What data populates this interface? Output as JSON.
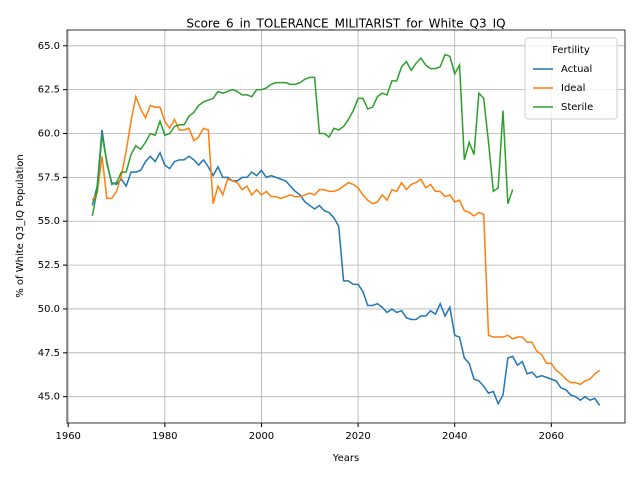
{
  "chart_data": {
    "type": "line",
    "title": "Score_6_in_TOLERANCE_MILITARIST_for_White_Q3_IQ",
    "xlabel": "Years",
    "ylabel": "% of White Q3_IQ Population",
    "legend_title": "Fertility",
    "legend": "upper right",
    "grid": true,
    "x": [
      1965,
      1966,
      1967,
      1968,
      1969,
      1970,
      1971,
      1972,
      1973,
      1974,
      1975,
      1976,
      1977,
      1978,
      1979,
      1980,
      1981,
      1982,
      1983,
      1984,
      1985,
      1986,
      1987,
      1988,
      1989,
      1990,
      1991,
      1992,
      1993,
      1994,
      1995,
      1996,
      1997,
      1998,
      1999,
      2000,
      2001,
      2002,
      2003,
      2004,
      2005,
      2006,
      2007,
      2008,
      2009,
      2010,
      2011,
      2012,
      2013,
      2014,
      2015,
      2016,
      2017,
      2018,
      2019,
      2020,
      2021,
      2022,
      2023,
      2024,
      2025,
      2026,
      2027,
      2028,
      2029,
      2030,
      2031,
      2032,
      2033,
      2034,
      2035,
      2036,
      2037,
      2038,
      2039,
      2040,
      2041,
      2042,
      2043,
      2044,
      2045,
      2046,
      2047,
      2048,
      2049,
      2050,
      2051,
      2052,
      2053,
      2054,
      2055,
      2056,
      2057,
      2058,
      2059,
      2060,
      2061,
      2062,
      2063,
      2064,
      2065,
      2066,
      2067,
      2068,
      2069,
      2070
    ],
    "series": [
      {
        "name": "Actual",
        "color": "#1f77b4",
        "values": [
          55.9,
          57.0,
          60.2,
          58.3,
          57.2,
          57.1,
          57.4,
          57.0,
          57.8,
          57.8,
          57.9,
          58.4,
          58.7,
          58.4,
          58.9,
          58.2,
          58.0,
          58.4,
          58.5,
          58.5,
          58.7,
          58.5,
          58.2,
          58.5,
          58.1,
          57.6,
          58.1,
          57.5,
          57.5,
          57.3,
          57.3,
          57.5,
          57.5,
          57.8,
          57.6,
          57.9,
          57.5,
          57.6,
          57.5,
          57.4,
          57.3,
          57.0,
          56.7,
          56.5,
          56.1,
          55.9,
          55.7,
          55.9,
          55.6,
          55.5,
          55.2,
          54.7,
          51.6,
          51.6,
          51.4,
          51.4,
          51.0,
          50.2,
          50.2,
          50.3,
          50.1,
          49.8,
          50.0,
          49.8,
          49.9,
          49.5,
          49.4,
          49.4,
          49.6,
          49.6,
          49.9,
          49.7,
          50.3,
          49.6,
          50.1,
          48.5,
          48.4,
          47.2,
          46.9,
          46.0,
          45.9,
          45.6,
          45.2,
          45.3,
          44.6,
          45.1,
          47.2,
          47.3,
          46.8,
          47.0,
          46.3,
          46.4,
          46.1,
          46.2,
          46.1,
          46.0,
          45.9,
          45.5,
          45.4,
          45.1,
          45.0,
          44.8,
          45.0,
          44.8,
          44.9,
          44.5
        ]
      },
      {
        "name": "Ideal",
        "color": "#ff7f0e",
        "values": [
          56.2,
          56.6,
          58.7,
          56.3,
          56.3,
          56.7,
          57.6,
          59.0,
          60.7,
          62.1,
          61.4,
          60.9,
          61.6,
          61.5,
          61.5,
          60.7,
          60.3,
          60.8,
          60.2,
          60.2,
          60.3,
          59.6,
          59.8,
          60.3,
          60.2,
          56.0,
          57.0,
          56.5,
          57.4,
          57.3,
          57.2,
          56.8,
          57.0,
          56.5,
          56.8,
          56.5,
          56.7,
          56.4,
          56.4,
          56.3,
          56.4,
          56.5,
          56.4,
          56.4,
          56.5,
          56.6,
          56.5,
          56.8,
          56.8,
          56.7,
          56.7,
          56.8,
          57.0,
          57.2,
          57.1,
          56.9,
          56.5,
          56.2,
          56.0,
          56.1,
          56.5,
          56.2,
          56.8,
          56.7,
          57.2,
          56.8,
          57.1,
          57.2,
          57.4,
          56.9,
          57.1,
          56.7,
          56.7,
          56.4,
          56.5,
          56.1,
          56.2,
          55.6,
          55.5,
          55.3,
          55.5,
          55.4,
          48.5,
          48.4,
          48.4,
          48.4,
          48.5,
          48.3,
          48.4,
          48.4,
          48.1,
          48.1,
          47.6,
          47.4,
          46.9,
          46.9,
          46.5,
          46.3,
          46.0,
          45.8,
          45.8,
          45.7,
          45.9,
          46.0,
          46.3,
          46.5
        ]
      },
      {
        "name": "Sterile",
        "color": "#2ca02c",
        "values": [
          55.3,
          56.8,
          59.9,
          58.4,
          57.1,
          57.2,
          57.8,
          57.8,
          58.8,
          59.3,
          59.1,
          59.5,
          60.0,
          59.9,
          60.7,
          59.9,
          60.0,
          60.4,
          60.5,
          60.5,
          61.0,
          61.2,
          61.6,
          61.8,
          61.9,
          62.0,
          62.4,
          62.3,
          62.4,
          62.5,
          62.4,
          62.2,
          62.2,
          62.1,
          62.5,
          62.5,
          62.6,
          62.8,
          62.9,
          62.9,
          62.9,
          62.8,
          62.8,
          62.9,
          63.1,
          63.2,
          63.2,
          60.0,
          60.0,
          59.8,
          60.3,
          60.2,
          60.4,
          60.8,
          61.3,
          62.0,
          62.0,
          61.4,
          61.5,
          62.1,
          62.3,
          62.2,
          63.0,
          63.0,
          63.8,
          64.1,
          63.6,
          64.0,
          64.3,
          63.9,
          63.7,
          63.7,
          63.8,
          64.5,
          64.4,
          63.4,
          63.9,
          58.5,
          59.5,
          58.8,
          62.3,
          62.0,
          59.5,
          56.7,
          56.9,
          61.3,
          56.0,
          56.8,
          null,
          null,
          null,
          null,
          null,
          null,
          null,
          null,
          null,
          null,
          null,
          null,
          null,
          null,
          null,
          null,
          null,
          null
        ]
      }
    ],
    "xlim": [
      1959.75,
      2075.25
    ],
    "xticks": [
      1960,
      1980,
      2000,
      2020,
      2040,
      2060
    ],
    "ylim": [
      43.5,
      65.9
    ],
    "yticks": [
      {
        "value": 45,
        "label": "45.0"
      },
      {
        "value": 47.5,
        "label": "47.5"
      },
      {
        "value": 50,
        "label": "50.0"
      },
      {
        "value": 52.5,
        "label": "52.5"
      },
      {
        "value": 55,
        "label": "55.0"
      },
      {
        "value": 57.5,
        "label": "57.5"
      },
      {
        "value": 60,
        "label": "60.0"
      },
      {
        "value": 62.5,
        "label": "62.5"
      },
      {
        "value": 65,
        "label": "65.0"
      }
    ]
  }
}
